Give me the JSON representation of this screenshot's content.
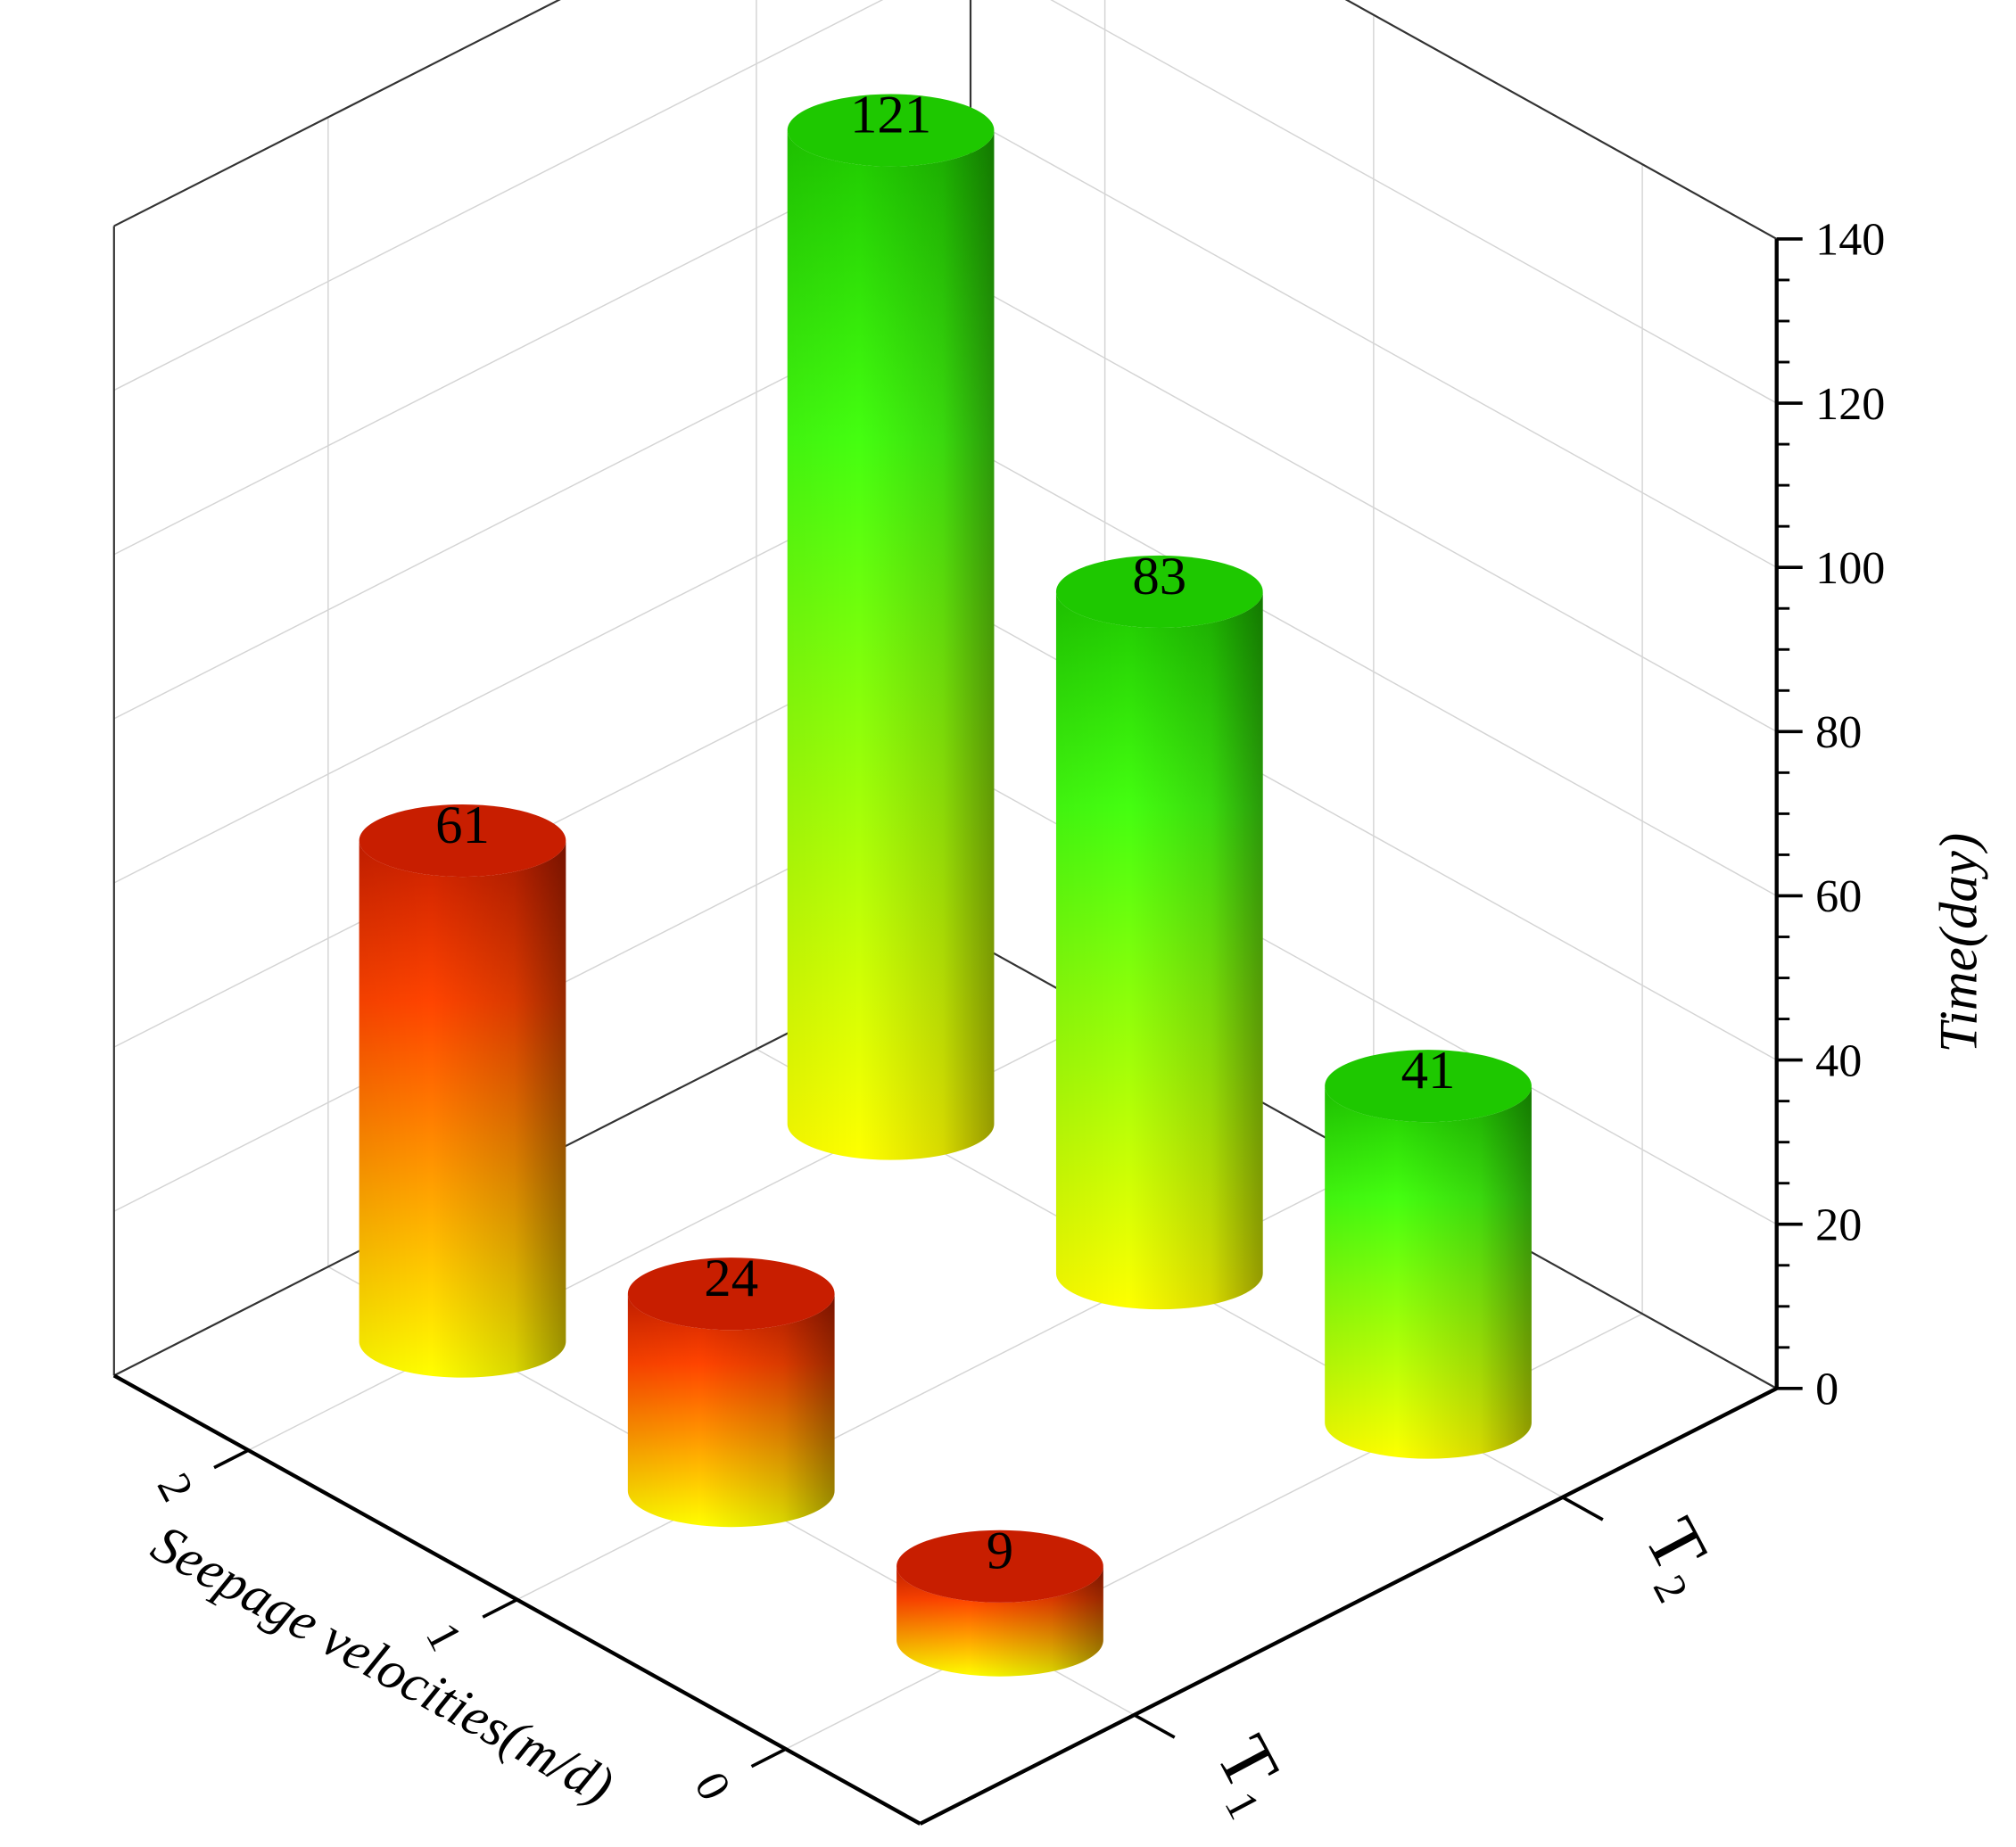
{
  "chart_data": {
    "type": "bar3d",
    "x_label": "Seepage velocities(m/d)",
    "y_label": "Time(day)",
    "categories": [
      "0",
      "1",
      "2"
    ],
    "series": [
      {
        "name": "T₁",
        "color": "#c81e00",
        "values": [
          9,
          24,
          61
        ]
      },
      {
        "name": "T₂",
        "color": "#1ec800",
        "values": [
          41,
          83,
          121
        ]
      }
    ],
    "bottom_color": "#ffff00",
    "ylim": [
      0,
      140
    ],
    "yticks": [
      0,
      20,
      40,
      60,
      80,
      100,
      120,
      140
    ],
    "grid": true
  }
}
